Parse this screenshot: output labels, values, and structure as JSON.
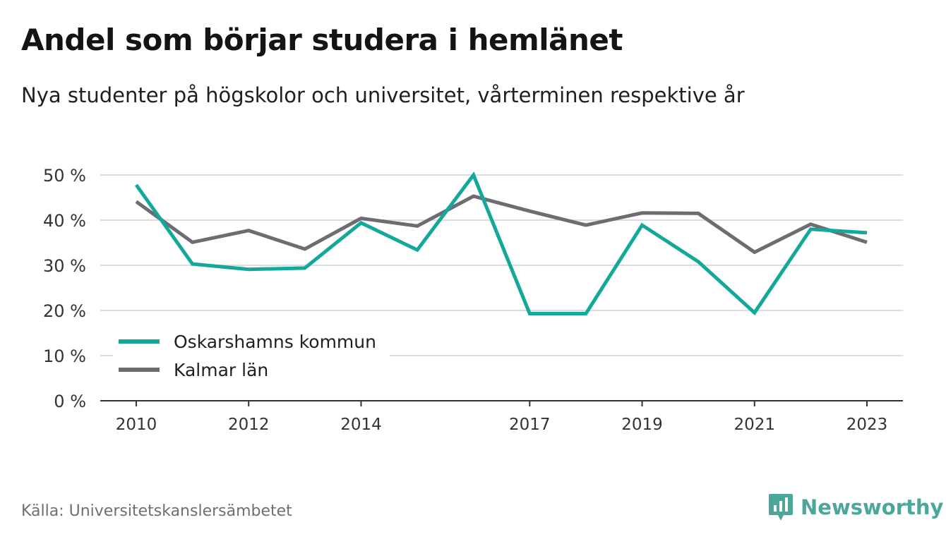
{
  "header": {
    "title": "Andel som börjar studera i hemlänet",
    "subtitle": "Nya studenter på högskolor och universitet, vårterminen respektive år"
  },
  "footer": {
    "source": "Källa: Universitetskanslersämbetet",
    "brand": "Newsworthy",
    "brand_icon": "bar-chart-speech-bubble-icon"
  },
  "colors": {
    "oskarshamn": "#14a89a",
    "kalmar": "#6d6c72",
    "grid": "#dcdcdc",
    "axis": "#333333",
    "brand": "#4aa79a"
  },
  "chart_data": {
    "type": "line",
    "x": [
      2010,
      2011,
      2012,
      2013,
      2014,
      2015,
      2016,
      2017,
      2018,
      2019,
      2020,
      2021,
      2022,
      2023
    ],
    "x_tick_labels": [
      "2010",
      "2012",
      "2014",
      "2017",
      "2019",
      "2021",
      "2023"
    ],
    "y_tick_labels": [
      "0 %",
      "10 %",
      "20 %",
      "30 %",
      "40 %",
      "50 %"
    ],
    "ylim": [
      0,
      50
    ],
    "grid": true,
    "legend_position": "bottom-left",
    "series": [
      {
        "name": "Oskarshamns kommun",
        "color_key": "oskarshamn",
        "values": [
          47.8,
          30.3,
          29.1,
          29.4,
          39.4,
          33.4,
          50.0,
          19.3,
          19.3,
          38.9,
          30.8,
          19.5,
          38.0,
          37.2
        ]
      },
      {
        "name": "Kalmar län",
        "color_key": "kalmar",
        "values": [
          44.1,
          35.1,
          37.7,
          33.6,
          40.4,
          38.7,
          45.3,
          42.0,
          38.9,
          41.6,
          41.5,
          32.9,
          39.1,
          35.1
        ]
      }
    ]
  }
}
